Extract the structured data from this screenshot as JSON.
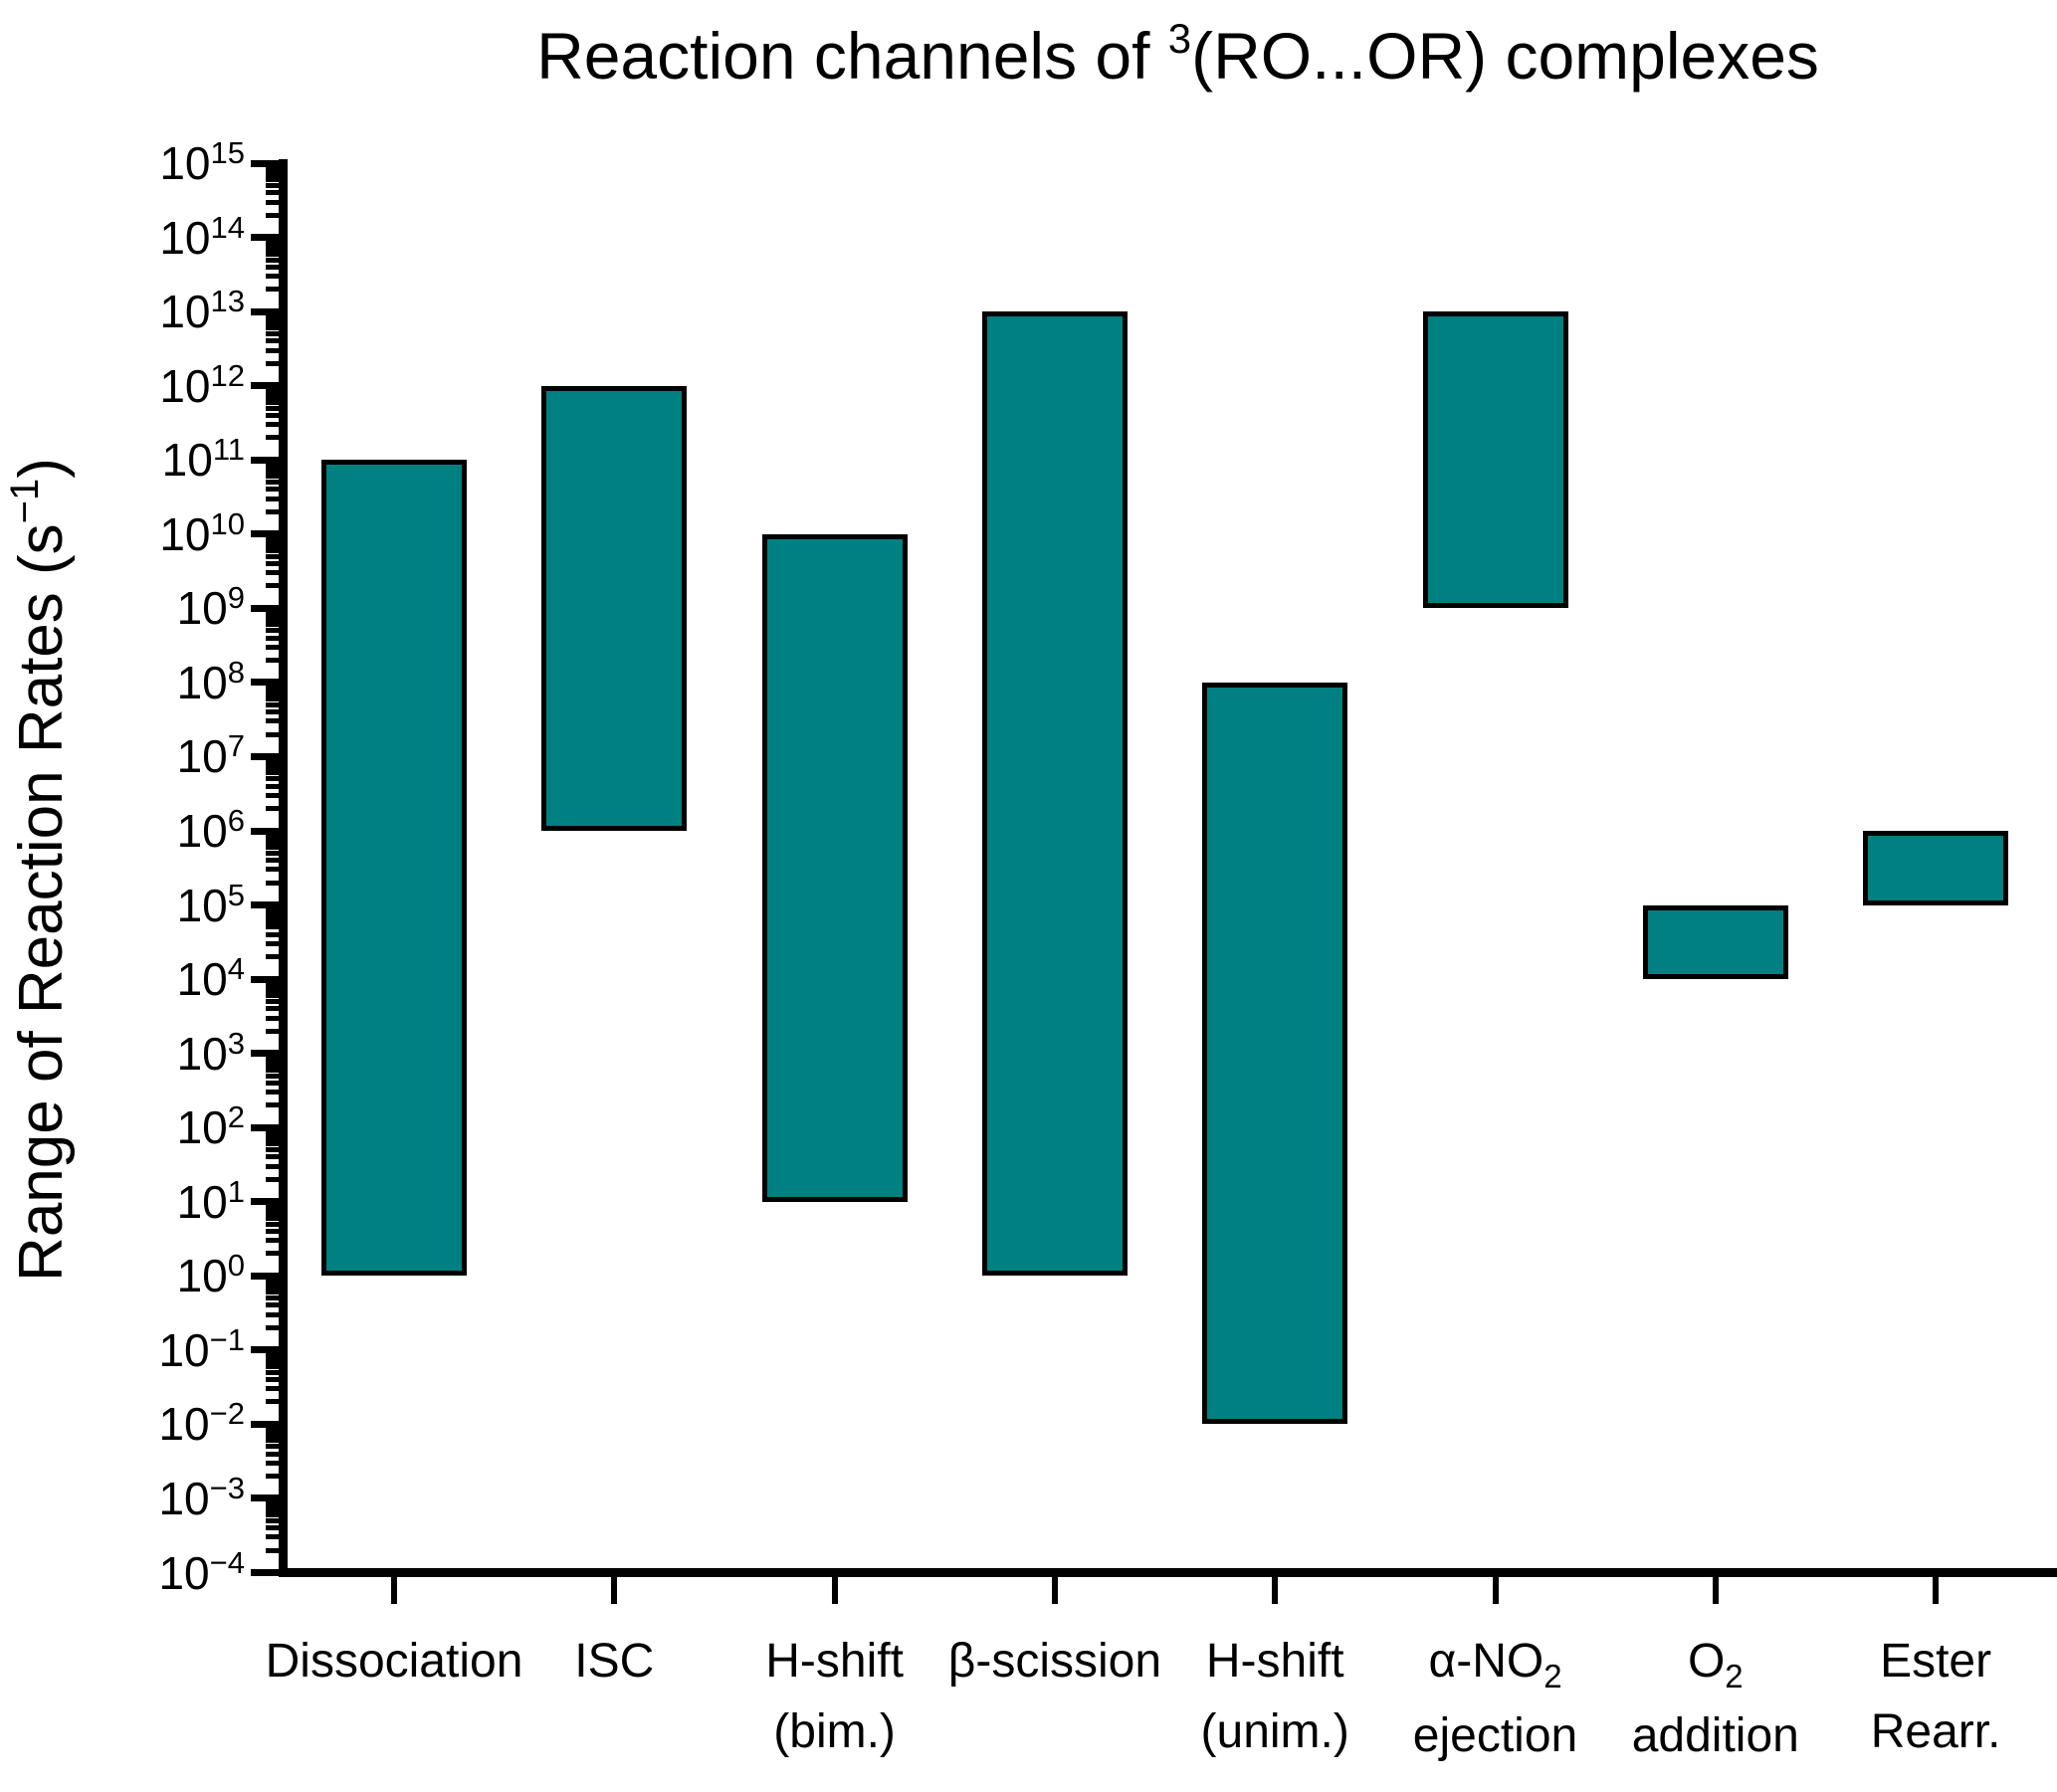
{
  "chart_data": {
    "type": "bar",
    "subtype": "floating-range",
    "title": "Reaction channels of 3(RO...OR) complexes",
    "title_segments": [
      {
        "t": "Reaction channels of "
      },
      {
        "t": "3",
        "sup": true
      },
      {
        "t": "(RO...OR) complexes"
      }
    ],
    "ylabel": "Range of Reaction Rates (s−1)",
    "ylabel_segments": [
      {
        "t": "Range of Reaction Rates (s"
      },
      {
        "t": "−1",
        "sup": true
      },
      {
        "t": ")"
      }
    ],
    "xlabel": "",
    "yscale": "log",
    "ylim": [
      0.0001,
      1000000000000000.0
    ],
    "y_tick_exponent_min": -4,
    "y_tick_exponent_max": 15,
    "y_minor_ticks": "log (2-9 per decade)",
    "grid": false,
    "legend": null,
    "bar_color": "#008080",
    "bar_edge_color": "#000000",
    "background_color": "#ffffff",
    "categories": [
      {
        "label": "Dissociation",
        "label_lines": [
          [
            {
              "t": "Dissociation"
            }
          ]
        ],
        "low": 1.0,
        "high": 100000000000.0,
        "low_exp": 0,
        "high_exp": 11
      },
      {
        "label": "ISC",
        "label_lines": [
          [
            {
              "t": "ISC"
            }
          ]
        ],
        "low": 1000000.0,
        "high": 1000000000000.0,
        "low_exp": 6,
        "high_exp": 12
      },
      {
        "label": "H-shift (bim.)",
        "label_lines": [
          [
            {
              "t": "H-shift"
            }
          ],
          [
            {
              "t": "(bim.)"
            }
          ]
        ],
        "low": 10.0,
        "high": 10000000000.0,
        "low_exp": 1,
        "high_exp": 10
      },
      {
        "label": "β-scission",
        "label_lines": [
          [
            {
              "t": "β-scission"
            }
          ]
        ],
        "low": 1.0,
        "high": 10000000000000.0,
        "low_exp": 0,
        "high_exp": 13
      },
      {
        "label": "H-shift (unim.)",
        "label_lines": [
          [
            {
              "t": "H-shift"
            }
          ],
          [
            {
              "t": "(unim.)"
            }
          ]
        ],
        "low": 0.01,
        "high": 100000000.0,
        "low_exp": -2,
        "high_exp": 8
      },
      {
        "label": "α-NO₂ ejection",
        "label_lines": [
          [
            {
              "t": "α-NO"
            },
            {
              "t": "2",
              "sub": true
            }
          ],
          [
            {
              "t": "ejection"
            }
          ]
        ],
        "low": 1000000000.0,
        "high": 10000000000000.0,
        "low_exp": 9,
        "high_exp": 13
      },
      {
        "label": "O₂ addition",
        "label_lines": [
          [
            {
              "t": "O"
            },
            {
              "t": "2",
              "sub": true
            }
          ],
          [
            {
              "t": "addition"
            }
          ]
        ],
        "low": 10000.0,
        "high": 100000.0,
        "low_exp": 4,
        "high_exp": 5
      },
      {
        "label": "Ester Rearr.",
        "label_lines": [
          [
            {
              "t": "Ester"
            }
          ],
          [
            {
              "t": "Rearr."
            }
          ]
        ],
        "low": 100000.0,
        "high": 1000000.0,
        "low_exp": 5,
        "high_exp": 6
      }
    ]
  }
}
